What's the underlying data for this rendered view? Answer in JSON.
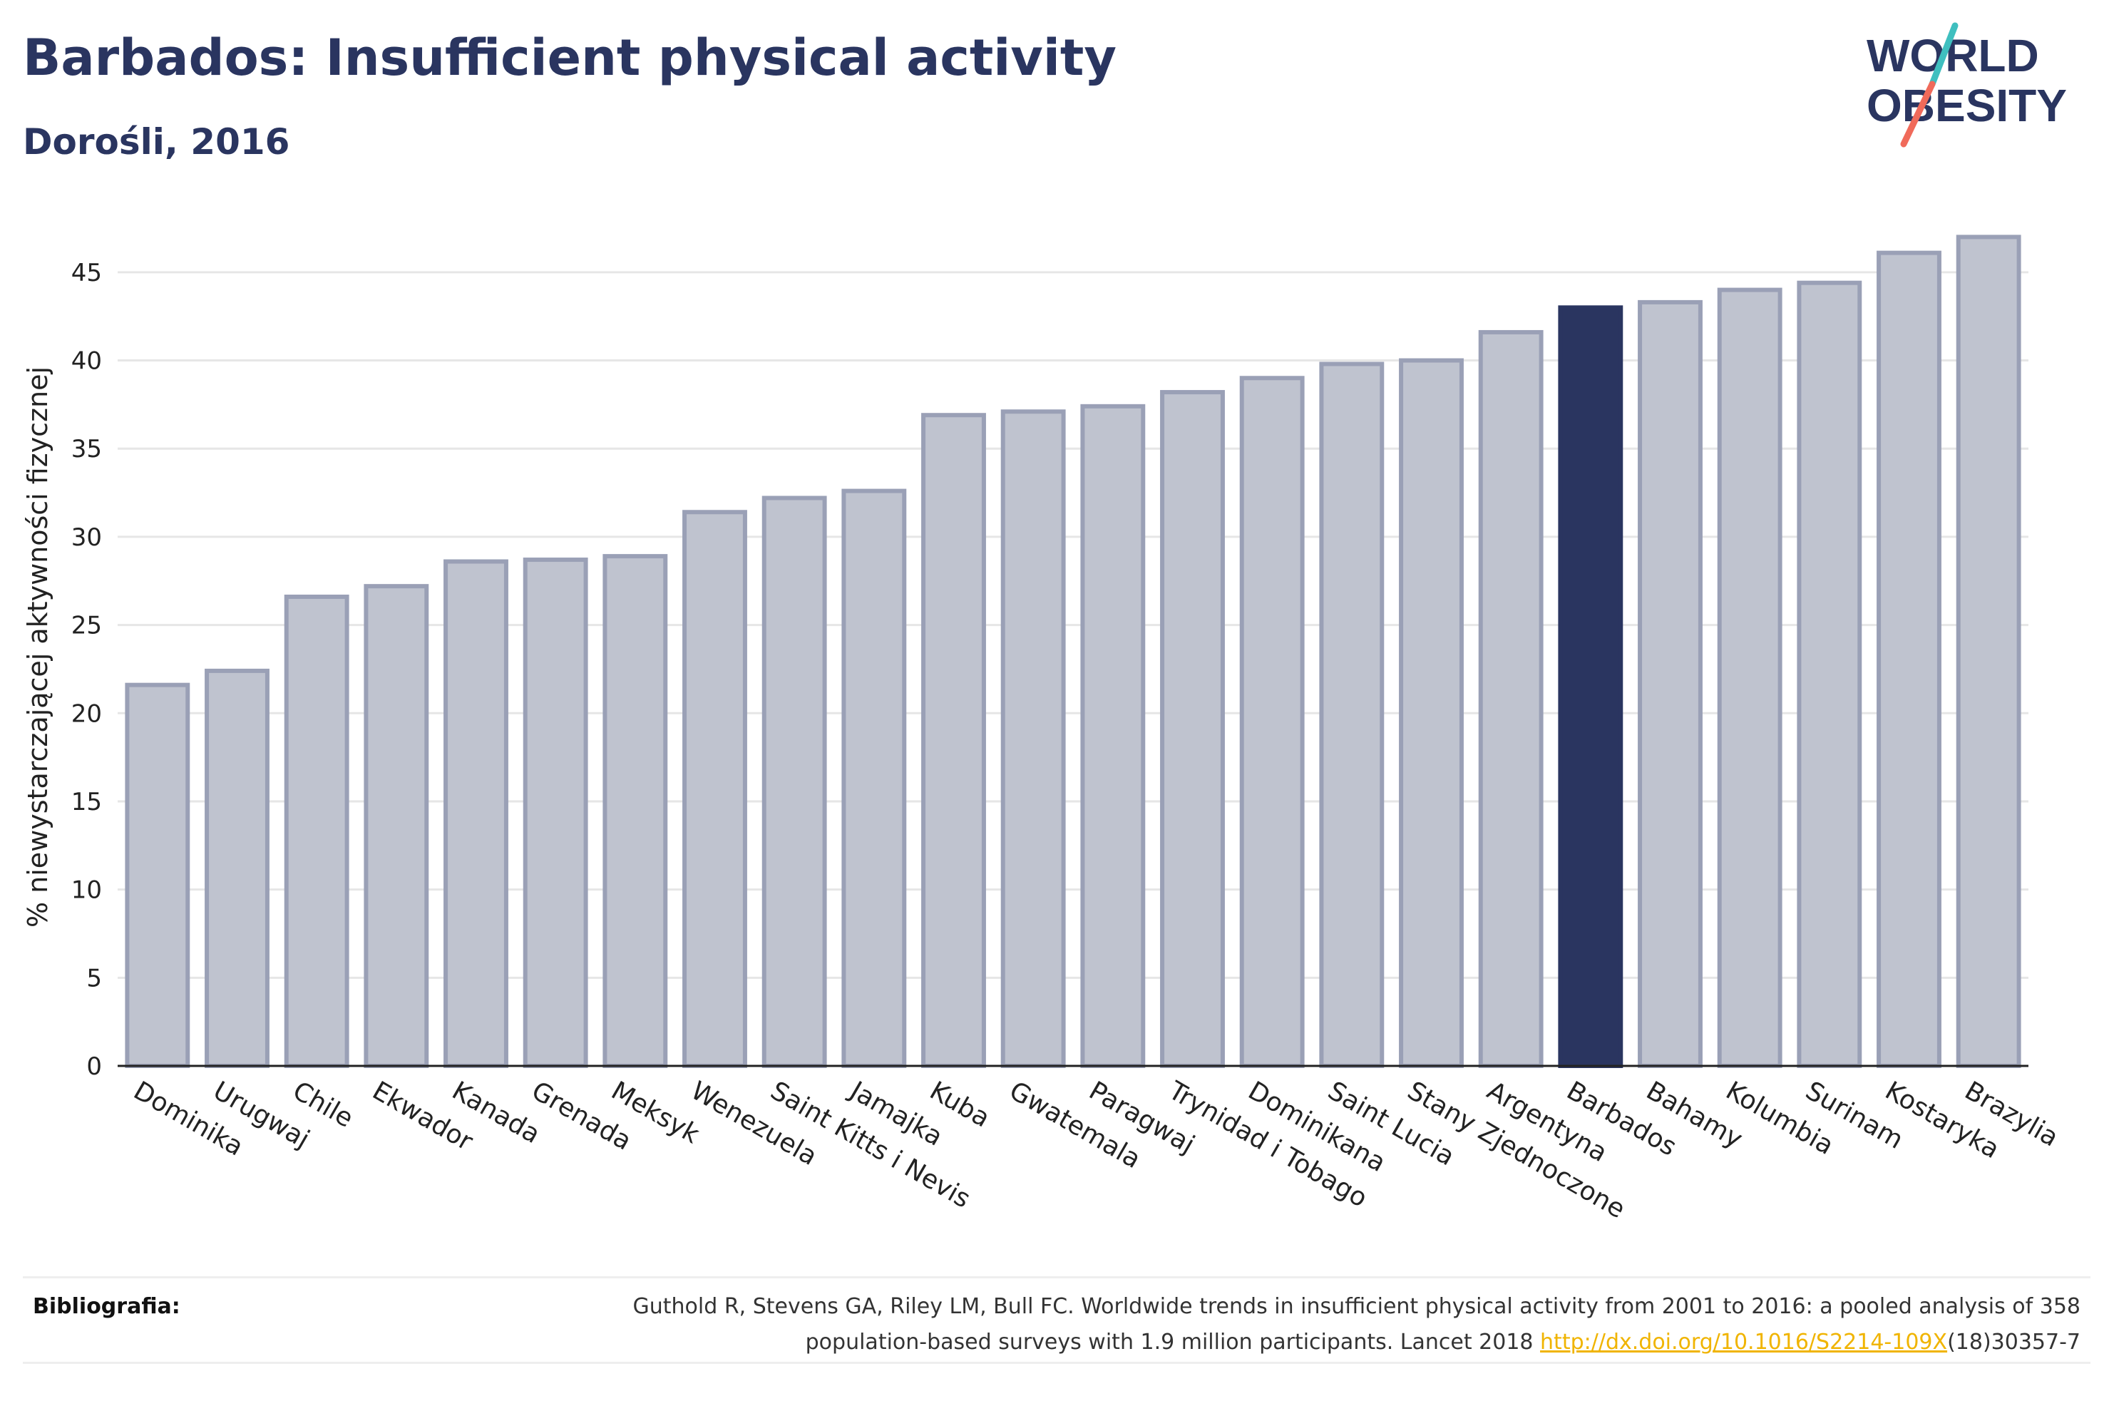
{
  "header": {
    "title": "Barbados: Insufficient physical activity",
    "subtitle": "Dorośli, 2016"
  },
  "logo": {
    "line1": "WORLD",
    "line2": "OBESITY",
    "text_color": "#2a3560",
    "slash_colors": [
      "#3fbfbf",
      "#f06a5a"
    ]
  },
  "colors": {
    "bar_fill": "#bfc3cf",
    "bar_stroke": "#9aa0b6",
    "highlight_fill": "#2a3560",
    "grid": "#e6e6e6",
    "axis": "#222222",
    "text": "#222222"
  },
  "chart_data": {
    "type": "bar",
    "title": "",
    "xlabel": "",
    "ylabel": "% niewystarczającej aktywności fizycznej",
    "ylim": [
      0,
      47.5
    ],
    "yticks": [
      0,
      5,
      10,
      15,
      20,
      25,
      30,
      35,
      40,
      45
    ],
    "grid": true,
    "highlight": "Barbados",
    "categories": [
      "Dominika",
      "Urugwaj",
      "Chile",
      "Ekwador",
      "Kanada",
      "Grenada",
      "Meksyk",
      "Wenezuela",
      "Saint Kitts i Nevis",
      "Jamajka",
      "Kuba",
      "Gwatemala",
      "Paragwaj",
      "Trynidad i Tobago",
      "Dominikana",
      "Saint Lucia",
      "Stany Zjednoczone",
      "Argentyna",
      "Barbados",
      "Bahamy",
      "Kolumbia",
      "Surinam",
      "Kostaryka",
      "Brazylia"
    ],
    "values": [
      21.6,
      22.4,
      26.6,
      27.2,
      28.6,
      28.7,
      28.9,
      31.4,
      32.2,
      32.6,
      36.9,
      37.1,
      37.4,
      38.2,
      39.0,
      39.8,
      40.0,
      41.6,
      43.0,
      43.3,
      44.0,
      44.4,
      46.1,
      47.0
    ]
  },
  "footer": {
    "label": "Bibliografia:",
    "line1": "Guthold R, Stevens GA, Riley LM, Bull FC. Worldwide trends in insufficient physical activity from 2001 to 2016: a pooled analysis of 358",
    "line2_before": "population-based surveys with 1.9 million participants. Lancet 2018 ",
    "link": "http://dx.doi.org/10.1016/S2214-109X",
    "line2_after": "(18)30357-7"
  }
}
